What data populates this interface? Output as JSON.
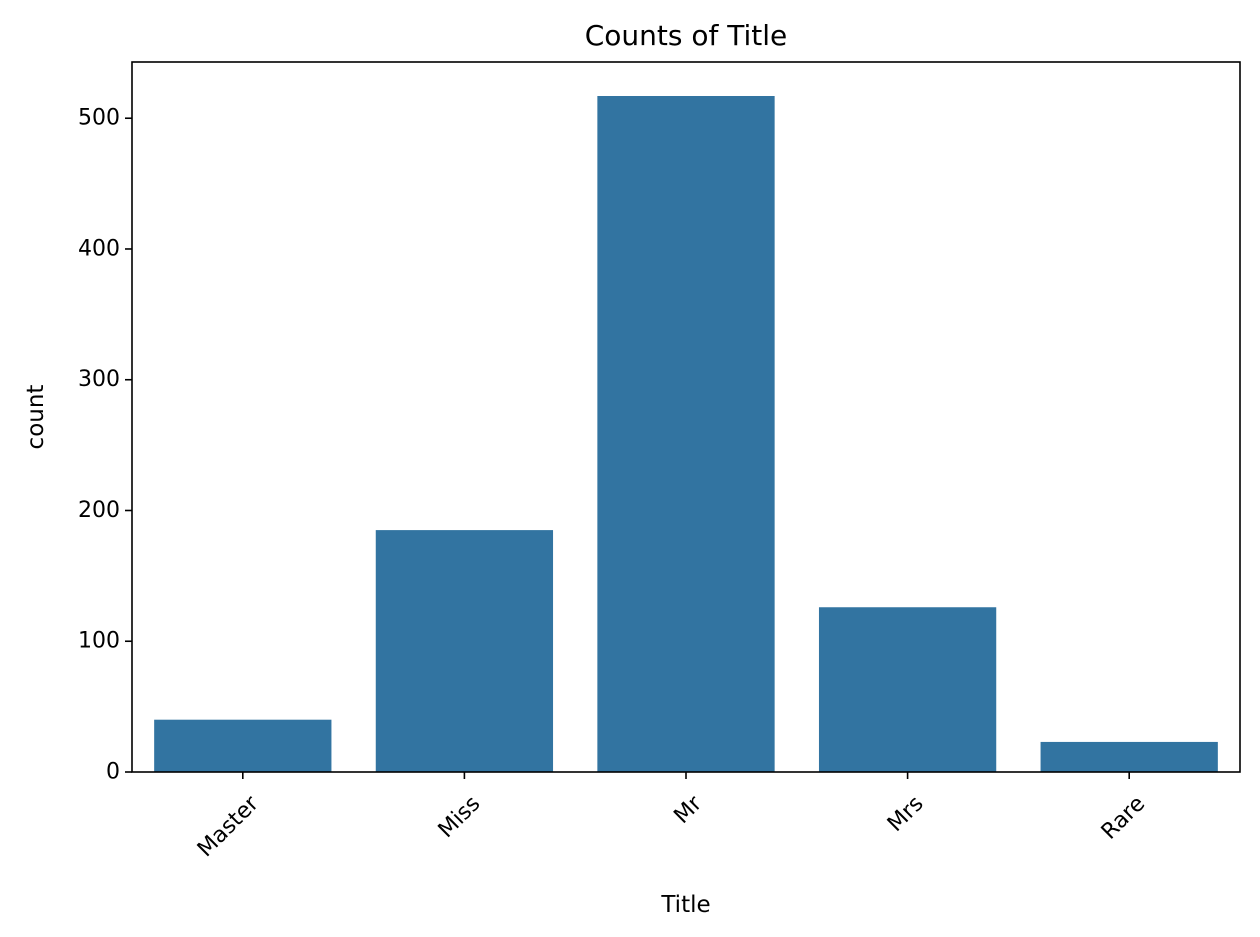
{
  "chart_data": {
    "type": "bar",
    "title": "Counts of Title",
    "xlabel": "Title",
    "ylabel": "count",
    "categories": [
      "Master",
      "Miss",
      "Mr",
      "Mrs",
      "Rare"
    ],
    "values": [
      40,
      185,
      517,
      126,
      23
    ],
    "ylim": [
      0,
      543
    ],
    "yticks": [
      0,
      100,
      200,
      300,
      400,
      500
    ],
    "grid": false,
    "legend": "none",
    "bar_color": "#3274a1",
    "x_tick_rotation_deg": 45
  }
}
